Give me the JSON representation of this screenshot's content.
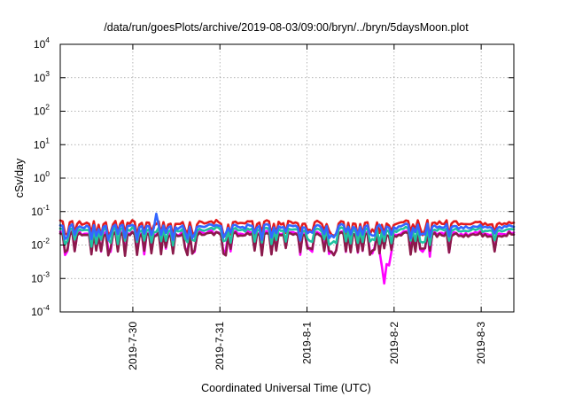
{
  "chart_data": {
    "type": "line",
    "title": "/data/run/goesPlots/archive/2019-08-03/09:00/bryn/../bryn/5daysMoon.plot",
    "xlabel": "Coordinated Universal Time (UTC)",
    "ylabel": "cSv/day",
    "yscale": "log",
    "ylim": [
      0.0001,
      10000
    ],
    "xlim": [
      "2019-07-29T04:00",
      "2019-08-03T09:00"
    ],
    "grid": true,
    "legend": "none",
    "yticks": [
      {
        "value": 0.0001,
        "base": "10",
        "exp": "-4"
      },
      {
        "value": 0.001,
        "base": "10",
        "exp": "-3"
      },
      {
        "value": 0.01,
        "base": "10",
        "exp": "-2"
      },
      {
        "value": 0.1,
        "base": "10",
        "exp": "-1"
      },
      {
        "value": 1,
        "base": "10",
        "exp": "0"
      },
      {
        "value": 10,
        "base": "10",
        "exp": "1"
      },
      {
        "value": 100,
        "base": "10",
        "exp": "2"
      },
      {
        "value": 1000,
        "base": "10",
        "exp": "3"
      },
      {
        "value": 10000,
        "base": "10",
        "exp": "4"
      }
    ],
    "xticks": [
      {
        "value": "2019-07-30T00:00",
        "label": "2019-7-30"
      },
      {
        "value": "2019-07-31T00:00",
        "label": "2019-7-31"
      },
      {
        "value": "2019-08-01T00:00",
        "label": "2019-8-1"
      },
      {
        "value": "2019-08-02T00:00",
        "label": "2019-8-2"
      },
      {
        "value": "2019-08-03T00:00",
        "label": "2019-8-3"
      }
    ],
    "series": [
      {
        "color": "#e41a1c",
        "base": 0.045,
        "dip_factor": 0.5
      },
      {
        "color": "#ff00ff",
        "base": 0.022,
        "dip_factor": 0.3
      },
      {
        "color": "#8b1a4b",
        "base": 0.02,
        "dip_factor": 0.32
      },
      {
        "color": "#1fc2a0",
        "base": 0.028,
        "dip_factor": 0.45
      },
      {
        "color": "#3366ff",
        "base": 0.035,
        "dip_factor": 0.55
      }
    ]
  }
}
